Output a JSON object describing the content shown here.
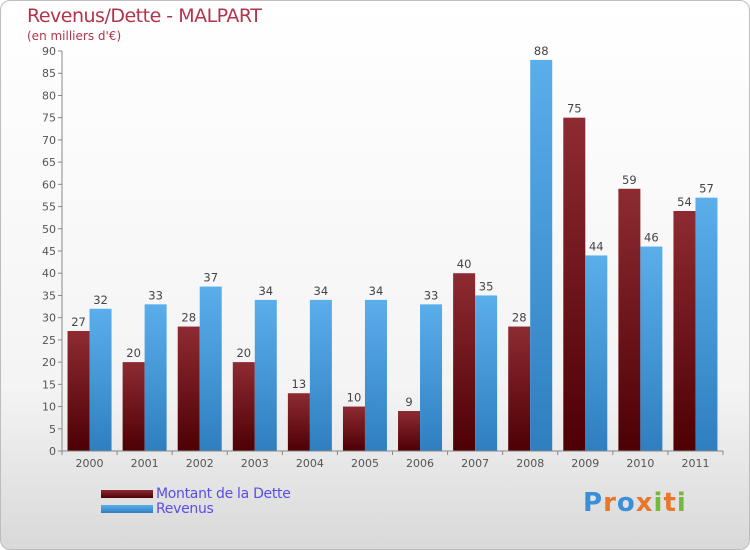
{
  "header": {
    "title": "Revenus/Dette - MALPART",
    "subtitle": "(en milliers d'€)"
  },
  "legend": {
    "items": [
      {
        "label": "Montant de la Dette",
        "color": "#6b1014"
      },
      {
        "label": "Revenus",
        "color": "#4a9fe0"
      }
    ]
  },
  "logo": {
    "text": "Proxiti",
    "letters": [
      {
        "ch": "P",
        "color": "#3b8fd8"
      },
      {
        "ch": "r",
        "color": "#e8762b"
      },
      {
        "ch": "o",
        "color": "#3b8fd8"
      },
      {
        "ch": "x",
        "color": "#e8762b"
      },
      {
        "ch": "i",
        "color": "#77b83a"
      },
      {
        "ch": "t",
        "color": "#e8762b"
      },
      {
        "ch": "i",
        "color": "#77b83a"
      }
    ]
  },
  "chart_data": {
    "type": "bar",
    "title": "Revenus/Dette - MALPART",
    "subtitle": "(en milliers d'€)",
    "categories": [
      "2000",
      "2001",
      "2002",
      "2003",
      "2004",
      "2005",
      "2006",
      "2007",
      "2008",
      "2009",
      "2010",
      "2011"
    ],
    "series": [
      {
        "name": "Montant de la Dette",
        "color": "#6b1014",
        "values": [
          27,
          20,
          28,
          20,
          13,
          10,
          9,
          40,
          28,
          75,
          59,
          54
        ]
      },
      {
        "name": "Revenus",
        "color": "#4a9fe0",
        "values": [
          32,
          33,
          37,
          34,
          34,
          34,
          33,
          35,
          88,
          44,
          46,
          57
        ]
      }
    ],
    "ylim": [
      0,
      90
    ],
    "yticks": [
      0,
      5,
      10,
      15,
      20,
      25,
      30,
      35,
      40,
      45,
      50,
      55,
      60,
      65,
      70,
      75,
      80,
      85,
      90
    ],
    "grid": false,
    "legend_position": "bottom-left"
  }
}
